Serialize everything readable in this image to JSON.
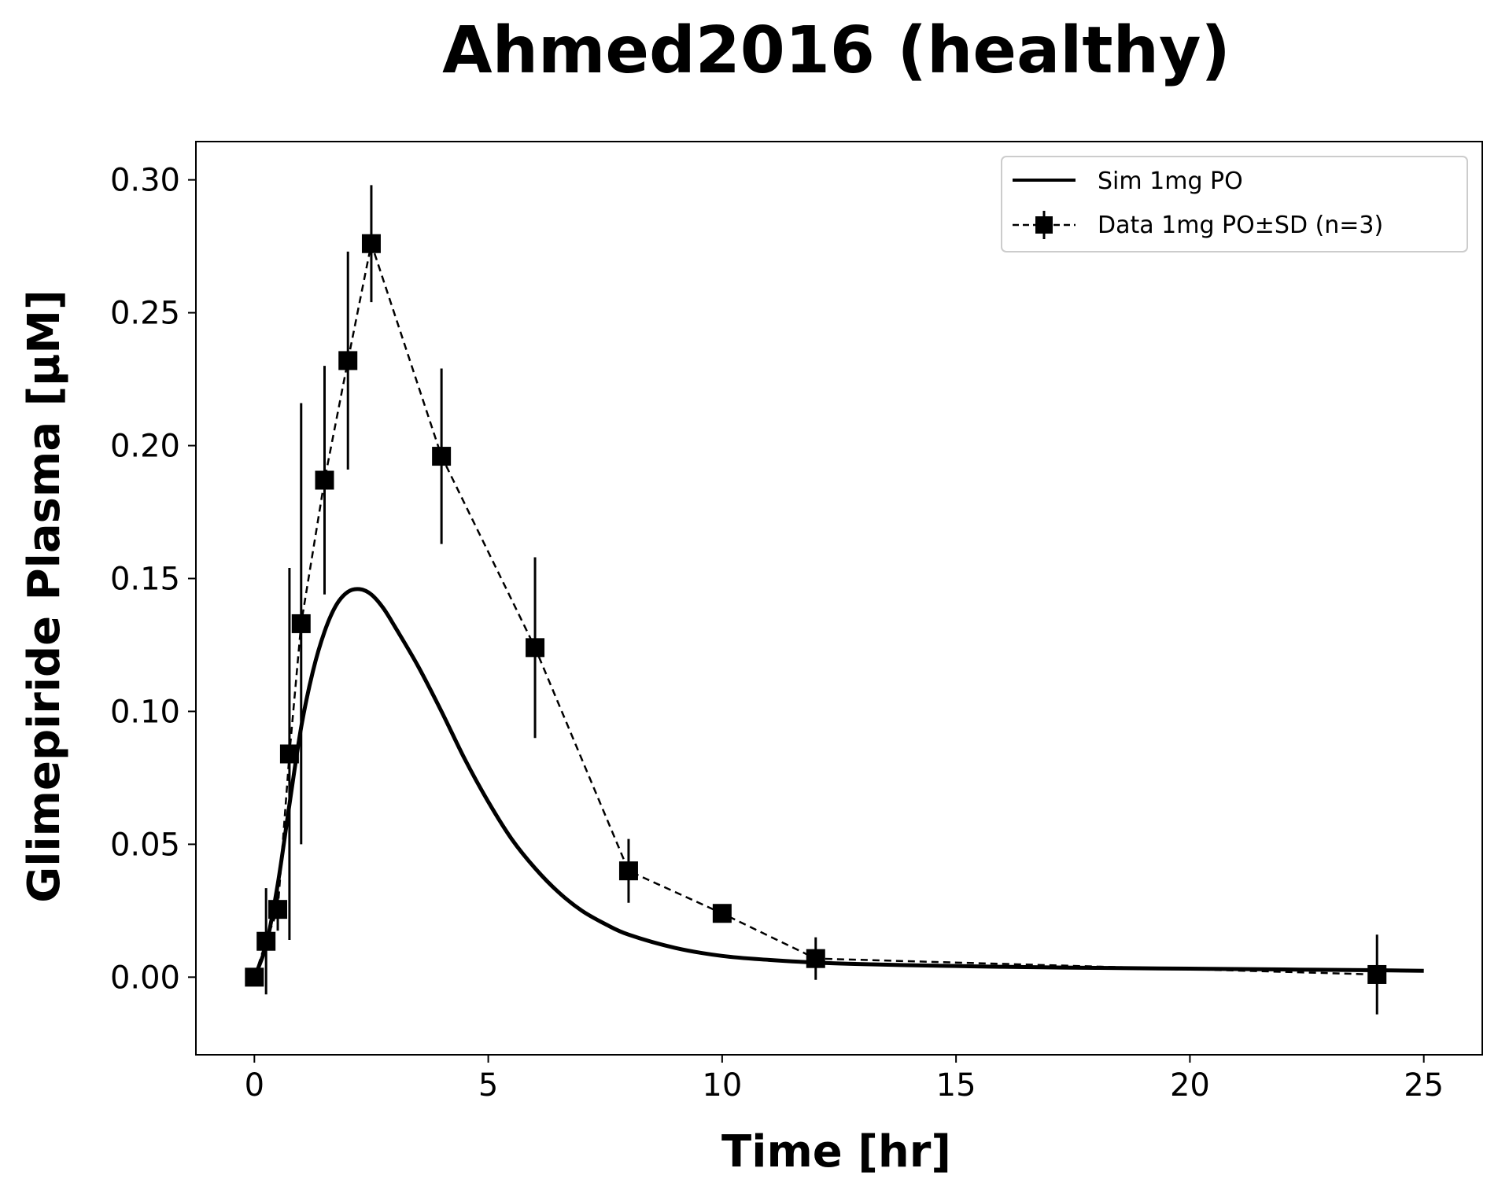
{
  "chart_data": {
    "type": "line",
    "title": "Ahmed2016 (healthy)",
    "xlabel": "Time [hr]",
    "ylabel": "Glimepiride Plasma [µM]",
    "xlim": [
      -1.25,
      26.25
    ],
    "ylim": [
      -0.0292,
      0.3144
    ],
    "x_ticks": [
      0,
      5,
      10,
      15,
      20,
      25
    ],
    "y_ticks": [
      0.0,
      0.05,
      0.1,
      0.15,
      0.2,
      0.25,
      0.3
    ],
    "x_tick_labels": [
      "0",
      "5",
      "10",
      "15",
      "20",
      "25"
    ],
    "y_tick_labels": [
      "0.00",
      "0.05",
      "0.10",
      "0.15",
      "0.20",
      "0.25",
      "0.30"
    ],
    "grid": false,
    "legend_position": "top-right",
    "series": [
      {
        "name": "Sim 1mg PO",
        "style": "solid",
        "color": "#000000",
        "x": [
          0,
          0.25,
          0.5,
          0.75,
          1.0,
          1.25,
          1.5,
          1.75,
          2.0,
          2.25,
          2.5,
          2.75,
          3.0,
          3.5,
          4.0,
          4.5,
          5.0,
          5.5,
          6.0,
          6.5,
          7.0,
          7.5,
          8.0,
          9.0,
          10.0,
          11.0,
          12.0,
          13.0,
          14.0,
          15.0,
          16.0,
          18.0,
          20.0,
          22.0,
          24.0,
          25.0
        ],
        "y": [
          0.0,
          0.012,
          0.035,
          0.065,
          0.094,
          0.115,
          0.13,
          0.14,
          0.145,
          0.146,
          0.144,
          0.139,
          0.132,
          0.117,
          0.1,
          0.082,
          0.066,
          0.052,
          0.041,
          0.032,
          0.025,
          0.02,
          0.016,
          0.011,
          0.008,
          0.0065,
          0.0055,
          0.0049,
          0.0045,
          0.0042,
          0.0039,
          0.0035,
          0.0032,
          0.0029,
          0.0026,
          0.0024
        ]
      },
      {
        "name": "Data 1mg PO±SD (n=3)",
        "style": "dashed",
        "marker": "square",
        "color": "#000000",
        "x": [
          0,
          0.25,
          0.5,
          0.75,
          1.0,
          1.5,
          2.0,
          2.5,
          4.0,
          6.0,
          8.0,
          10.0,
          12.0,
          24.0
        ],
        "y": [
          0.0,
          0.0135,
          0.0255,
          0.084,
          0.133,
          0.187,
          0.232,
          0.276,
          0.196,
          0.124,
          0.04,
          0.024,
          0.007,
          0.001
        ],
        "sd": [
          0.0,
          0.02,
          0.008,
          0.07,
          0.083,
          0.043,
          0.041,
          0.022,
          0.033,
          0.034,
          0.012,
          0.003,
          0.008,
          0.015
        ]
      }
    ]
  }
}
